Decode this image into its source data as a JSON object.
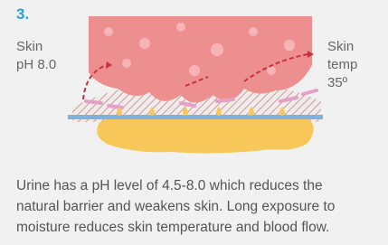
{
  "step": "3.",
  "left_label": [
    "Skin",
    "pH 8.0"
  ],
  "right_label": [
    "Skin",
    "temp",
    "35º"
  ],
  "caption": [
    "Urine has a pH level of 4.5-8.0 which reduces the",
    "natural barrier and weakens skin. Long exposure to",
    "moisture reduces skin temperature and blood flow."
  ]
}
